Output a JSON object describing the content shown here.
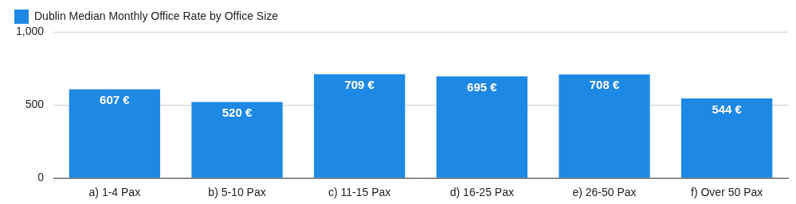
{
  "chart_data": {
    "type": "bar",
    "categories": [
      "a) 1-4 Pax",
      "b) 5-10 Pax",
      "c) 11-15 Pax",
      "d) 16-25 Pax",
      "e) 26-50 Pax",
      "f) Over 50 Pax"
    ],
    "series": [
      {
        "name": "Dublin Median Monthly Office Rate by Office Size",
        "color": "#1e88e5",
        "values": [
          607,
          520,
          709,
          695,
          708,
          544
        ],
        "value_labels": [
          "607 €",
          "520 €",
          "709 €",
          "695 €",
          "708 €",
          "544 €"
        ]
      }
    ],
    "ylim": [
      0,
      1000
    ],
    "yticks": [
      0,
      500,
      {
        "value": 1000,
        "label": "1,000"
      }
    ],
    "grid": true,
    "legend": "top-left",
    "data_labels": true
  }
}
